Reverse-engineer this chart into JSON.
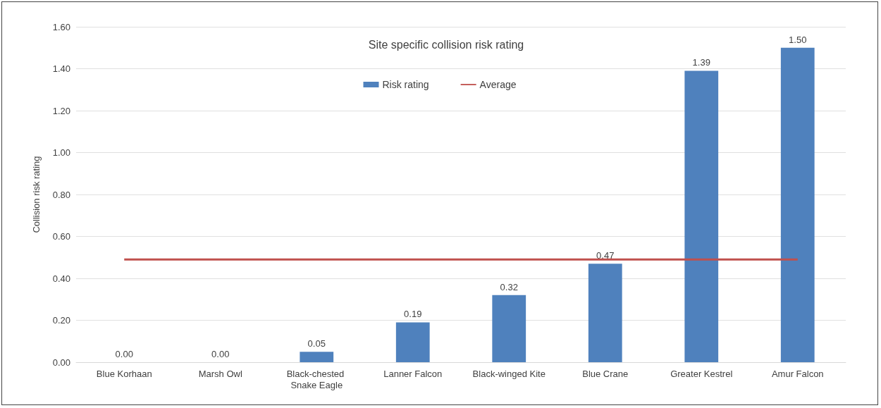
{
  "chart_data": {
    "type": "bar",
    "title": "Site specific collision risk rating",
    "ylabel": "Collision risk rating",
    "categories": [
      "Blue Korhaan",
      "Marsh Owl",
      "Black-chested Snake Eagle",
      "Lanner Falcon",
      "Black-winged Kite",
      "Blue Crane",
      "Greater Kestrel",
      "Amur Falcon"
    ],
    "series": [
      {
        "name": "Risk rating",
        "color": "#4f81bd",
        "values": [
          0,
          0,
          0.05,
          0.19,
          0.32,
          0.47,
          1.39,
          1.5
        ],
        "value_labels": [
          "0.00",
          "0.00",
          "0.05",
          "0.19",
          "0.32",
          "0.47",
          "1.39",
          "1.50"
        ]
      },
      {
        "name": "Average",
        "type": "line",
        "color": "#c0504d",
        "values": [
          0.49,
          0.49,
          0.49,
          0.49,
          0.49,
          0.49,
          0.49,
          0.49
        ]
      }
    ],
    "ylim": [
      0,
      1.6
    ],
    "yticks": [
      {
        "value": 0,
        "label": "0.00"
      },
      {
        "value": 0.2,
        "label": "0.20"
      },
      {
        "value": 0.4,
        "label": "0.40"
      },
      {
        "value": 0.6,
        "label": "0.60"
      },
      {
        "value": 0.8,
        "label": "0.80"
      },
      {
        "value": 1,
        "label": "1.00"
      },
      {
        "value": 1.2,
        "label": "1.20"
      },
      {
        "value": 1.4,
        "label": "1.40"
      },
      {
        "value": 1.6,
        "label": "1.60"
      }
    ],
    "grid": "y",
    "legend": "top",
    "marker": "none",
    "line_style": "solid"
  }
}
